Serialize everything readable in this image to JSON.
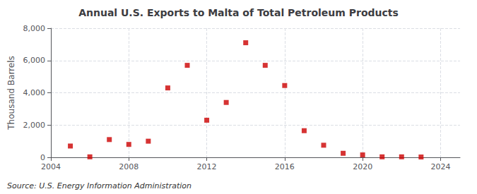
{
  "chart_data": {
    "type": "scatter",
    "title": "Annual U.S. Exports to Malta of Total Petroleum Products",
    "ylabel": "Thousand Barrels",
    "annotations": [
      "Source: U.S. Energy Information Administration"
    ],
    "x": [
      2005,
      2006,
      2007,
      2008,
      2009,
      2010,
      2011,
      2012,
      2013,
      2014,
      2015,
      2016,
      2017,
      2018,
      2019,
      2020,
      2021,
      2022,
      2023
    ],
    "values": [
      700,
      30,
      1100,
      800,
      1000,
      4300,
      5700,
      2300,
      3400,
      7100,
      5700,
      4450,
      1650,
      750,
      250,
      150,
      30,
      30,
      20
    ],
    "color": "#cc0000",
    "marker": "square",
    "xlim": [
      2004,
      2025
    ],
    "ylim": [
      0,
      8000
    ],
    "xticks": [
      2004,
      2008,
      2012,
      2016,
      2020,
      2024
    ],
    "yticks": [
      0,
      {
        "value": 2000,
        "label": "2,000"
      },
      {
        "value": 4000,
        "label": "4,000"
      },
      {
        "value": 6000,
        "label": "6,000"
      },
      {
        "value": 8000,
        "label": "8,000"
      }
    ],
    "grid": true
  }
}
